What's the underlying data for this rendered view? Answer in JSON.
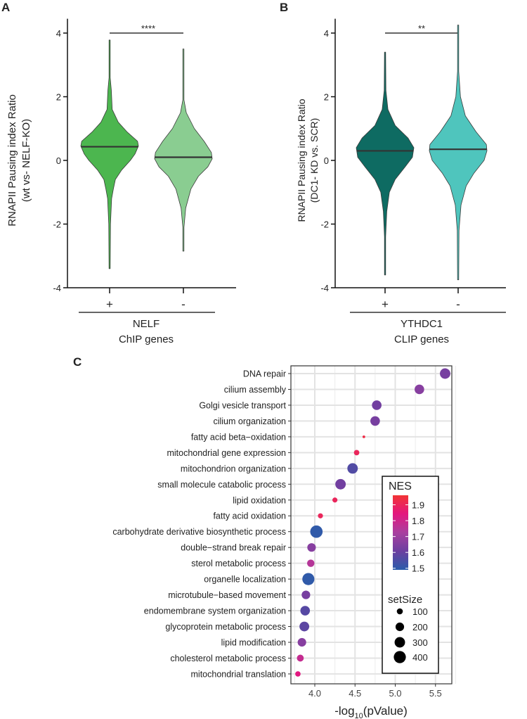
{
  "chart_data": [
    {
      "type": "violin",
      "panel_label": "A",
      "ylabel_line1": "RNAPII Pausing index Ratio",
      "ylabel_line2": "(wt vs- NELF-KO)",
      "ylim": [
        -4,
        4.5
      ],
      "yticks": [
        4,
        2,
        0,
        -2,
        -4
      ],
      "yticklabels": [
        "4",
        "2",
        "0",
        "-2",
        "-4"
      ],
      "categories": [
        "+",
        "-"
      ],
      "group_label_line1": "NELF",
      "group_label_line2": "ChIP genes",
      "significance": "****",
      "colors": [
        "#4cb64f",
        "#8acd91"
      ],
      "violins": [
        {
          "min": -3.4,
          "max": 3.78,
          "median": 0.43,
          "density": [
            [
              3.78,
              0
            ],
            [
              2.6,
              0.02
            ],
            [
              2.2,
              0.06
            ],
            [
              1.6,
              0.09
            ],
            [
              1.2,
              0.3
            ],
            [
              0.9,
              0.6
            ],
            [
              0.6,
              0.97
            ],
            [
              0.45,
              1
            ],
            [
              0.2,
              0.88
            ],
            [
              0,
              0.72
            ],
            [
              -0.3,
              0.42
            ],
            [
              -0.6,
              0.2
            ],
            [
              -0.9,
              0.13
            ],
            [
              -1.2,
              0.07
            ],
            [
              -2,
              0.03
            ],
            [
              -3.4,
              0
            ]
          ]
        },
        {
          "min": -2.85,
          "max": 3.5,
          "median": 0.1,
          "density": [
            [
              3.5,
              0
            ],
            [
              1.9,
              0.02
            ],
            [
              1.5,
              0.1
            ],
            [
              1.0,
              0.38
            ],
            [
              0.6,
              0.72
            ],
            [
              0.25,
              0.97
            ],
            [
              0.05,
              1
            ],
            [
              -0.2,
              0.85
            ],
            [
              -0.5,
              0.52
            ],
            [
              -0.9,
              0.26
            ],
            [
              -1.5,
              0.08
            ],
            [
              -2.1,
              0.02
            ],
            [
              -2.85,
              0
            ]
          ]
        }
      ]
    },
    {
      "type": "violin",
      "panel_label": "B",
      "ylabel_line1": "RNAPII Pausing index Ratio",
      "ylabel_line2": "(DC1- KD vs. SCR)",
      "ylim": [
        -4,
        4.5
      ],
      "yticks": [
        4,
        2,
        0,
        -2,
        -4
      ],
      "yticklabels": [
        "4",
        "2",
        "0",
        "-2",
        "-4"
      ],
      "categories": [
        "+",
        "-"
      ],
      "group_label_line1": "YTHDC1",
      "group_label_line2": "CLIP genes",
      "significance": "**",
      "colors": [
        "#0e6b62",
        "#4fc5bd"
      ],
      "violins": [
        {
          "min": -3.6,
          "max": 3.4,
          "median": 0.3,
          "density": [
            [
              3.4,
              0
            ],
            [
              2.2,
              0.03
            ],
            [
              1.6,
              0.1
            ],
            [
              1.1,
              0.35
            ],
            [
              0.7,
              0.8
            ],
            [
              0.4,
              1
            ],
            [
              0.1,
              0.95
            ],
            [
              -0.2,
              0.7
            ],
            [
              -0.6,
              0.35
            ],
            [
              -1.0,
              0.15
            ],
            [
              -1.6,
              0.06
            ],
            [
              -2.4,
              0.02
            ],
            [
              -3.6,
              0
            ]
          ]
        },
        {
          "min": -3.75,
          "max": 4.25,
          "median": 0.35,
          "density": [
            [
              4.25,
              0
            ],
            [
              2.8,
              0.02
            ],
            [
              2.0,
              0.08
            ],
            [
              1.4,
              0.25
            ],
            [
              0.9,
              0.62
            ],
            [
              0.5,
              0.98
            ],
            [
              0.3,
              1
            ],
            [
              0,
              0.9
            ],
            [
              -0.4,
              0.55
            ],
            [
              -0.8,
              0.28
            ],
            [
              -1.4,
              0.1
            ],
            [
              -2.2,
              0.03
            ],
            [
              -3.75,
              0
            ]
          ]
        }
      ]
    },
    {
      "type": "scatter",
      "panel_label": "C",
      "xlabel_prefix": "-log",
      "xlabel_sub": "10",
      "xlabel_suffix": "(pValue)",
      "xlim": [
        3.7,
        5.7
      ],
      "xticks": [
        4.0,
        4.5,
        5.0,
        5.5
      ],
      "xticklabels": [
        "4.0",
        "4.5",
        "5.0",
        "5.5"
      ],
      "terms": [
        "DNA repair",
        "cilium assembly",
        "Golgi vesicle transport",
        "cilium organization",
        "fatty acid beta−oxidation",
        "mitochondrial gene expression",
        "mitochondrion organization",
        "small molecule catabolic process",
        "lipid oxidation",
        "fatty acid oxidation",
        "carbohydrate derivative biosynthetic process",
        "double−strand break repair",
        "sterol metabolic process",
        "organelle localization",
        "microtubule−based movement",
        "endomembrane system organization",
        "glycoprotein metabolic process",
        "lipid modification",
        "cholesterol metabolic process",
        "mitochondrial translation"
      ],
      "neg_log10_p": [
        5.62,
        5.3,
        4.77,
        4.75,
        4.61,
        4.52,
        4.47,
        4.32,
        4.25,
        4.07,
        4.02,
        3.96,
        3.95,
        3.92,
        3.89,
        3.88,
        3.87,
        3.84,
        3.82,
        3.79
      ],
      "NES": [
        1.63,
        1.66,
        1.62,
        1.63,
        1.93,
        1.9,
        1.56,
        1.62,
        1.9,
        1.9,
        1.5,
        1.66,
        1.75,
        1.5,
        1.63,
        1.57,
        1.58,
        1.66,
        1.78,
        1.84
      ],
      "setSize": [
        300,
        250,
        250,
        250,
        20,
        80,
        300,
        300,
        70,
        70,
        420,
        200,
        150,
        400,
        200,
        250,
        260,
        200,
        130,
        80
      ],
      "legend": {
        "color_title": "NES",
        "color_ticks": [
          "1.9",
          "1.8",
          "1.7",
          "1.6",
          "1.5"
        ],
        "color_tick_values": [
          1.9,
          1.8,
          1.7,
          1.6,
          1.5
        ],
        "color_range": [
          1.49,
          1.96
        ],
        "size_title": "setSize",
        "size_labels": [
          "100",
          "200",
          "300",
          "400"
        ],
        "size_values": [
          100,
          200,
          300,
          400
        ],
        "placement": "inside-bottom-right"
      },
      "colorscale": [
        "#2a5caa",
        "#6b3fa0",
        "#a93f9f",
        "#e3177f",
        "#f23535"
      ]
    }
  ]
}
